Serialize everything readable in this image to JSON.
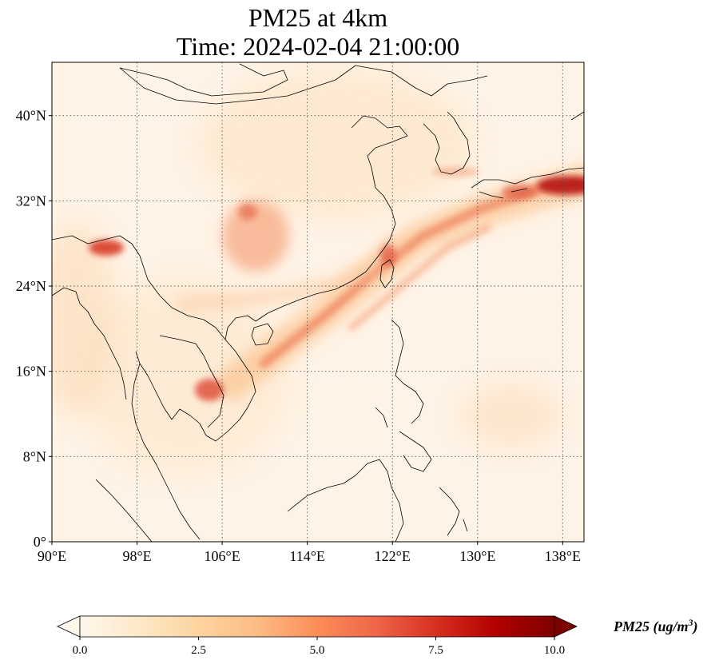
{
  "title": {
    "line1": "PM25 at 4km",
    "line2": "Time: 2024-02-04 21:00:00"
  },
  "map": {
    "lon_range": [
      90,
      140
    ],
    "lat_range": [
      0,
      45
    ],
    "x_ticks": [
      {
        "value": 90,
        "label": "90°E"
      },
      {
        "value": 98,
        "label": "98°E"
      },
      {
        "value": 106,
        "label": "106°E"
      },
      {
        "value": 114,
        "label": "114°E"
      },
      {
        "value": 122,
        "label": "122°E"
      },
      {
        "value": 130,
        "label": "130°E"
      },
      {
        "value": 138,
        "label": "138°E"
      }
    ],
    "y_ticks": [
      {
        "value": 0,
        "label": "0°"
      },
      {
        "value": 8,
        "label": "8°N"
      },
      {
        "value": 16,
        "label": "16°N"
      },
      {
        "value": 24,
        "label": "24°N"
      },
      {
        "value": 32,
        "label": "32°N"
      },
      {
        "value": 40,
        "label": "40°N"
      }
    ],
    "gridlines": "dotted",
    "field_max": 10,
    "plumes": [
      {
        "name": "frontal-band",
        "from_lon": 107,
        "from_lat": 15.5,
        "to_lon": 140,
        "to_lat": 33.5,
        "peak": 6.5
      },
      {
        "name": "japan-south",
        "from_lon": 133,
        "from_lat": 33.5,
        "to_lon": 140,
        "to_lat": 33.5,
        "peak": 9.5
      },
      {
        "name": "sichuan-basin",
        "lon": 109,
        "lat": 29.5,
        "peak": 5
      },
      {
        "name": "himalaya-north-india",
        "lon": 95.5,
        "lat": 27.8,
        "peak": 8
      },
      {
        "name": "cambodia",
        "lon": 104.5,
        "lat": 14.5,
        "peak": 6
      },
      {
        "name": "taiwan-strait",
        "lon": 120.5,
        "lat": 26,
        "peak": 5
      }
    ]
  },
  "colorbar": {
    "colormap": "OrRd",
    "min": 0,
    "max": 10,
    "ticks": [
      "0.0",
      "2.5",
      "5.0",
      "7.5",
      "10.0"
    ],
    "extend": "both",
    "label_prefix": "PM25 (ug/m",
    "label_exp": "3",
    "label_suffix": ")"
  }
}
